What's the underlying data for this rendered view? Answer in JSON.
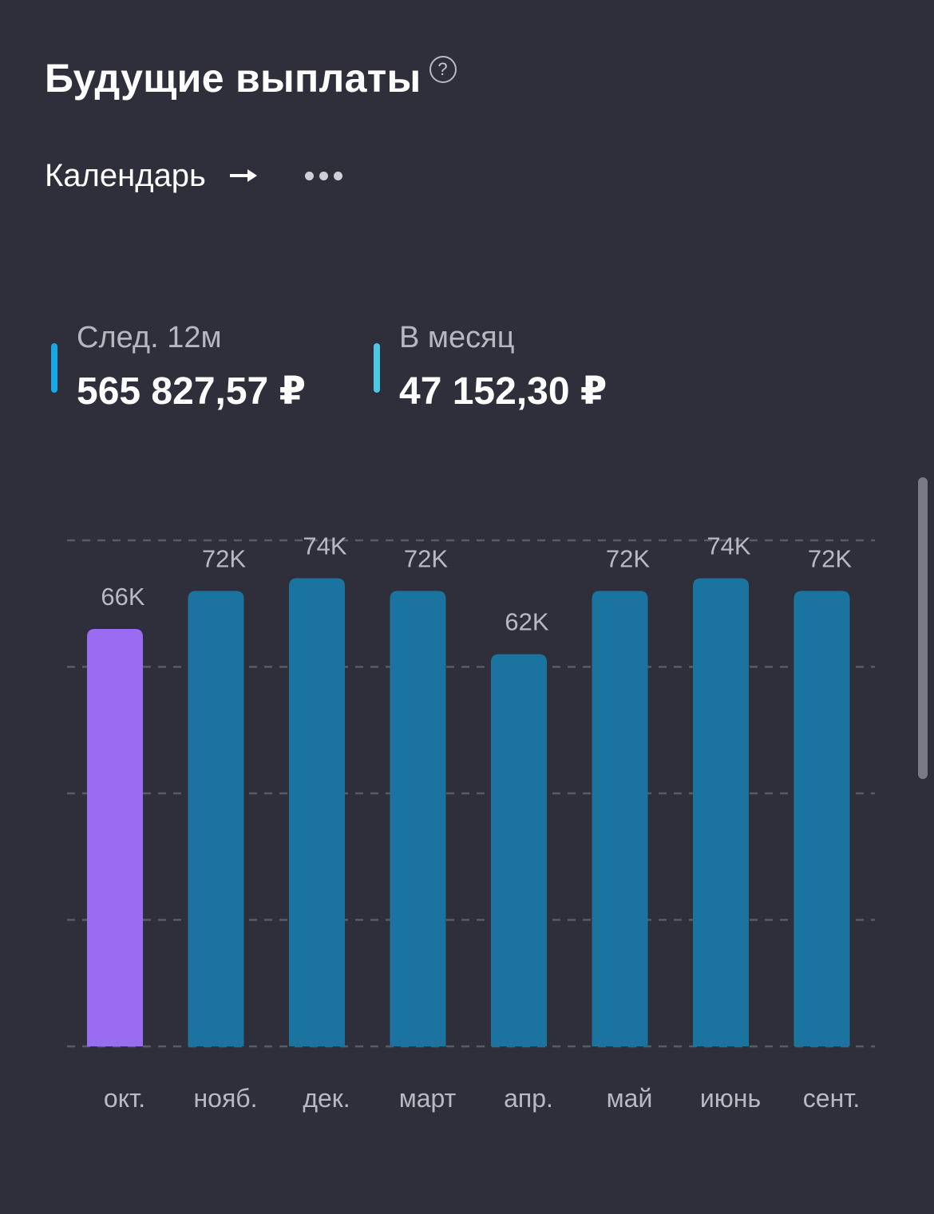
{
  "header": {
    "title": "Будущие выплаты",
    "help_glyph": "?"
  },
  "calendar": {
    "label": "Календарь",
    "arrow_icon": "arrow-right-icon",
    "more_icon": "more-dots-icon"
  },
  "stats": [
    {
      "label": "След. 12м",
      "value": "565 827,57 ₽",
      "color": "#1aa7e6"
    },
    {
      "label": "В месяц",
      "value": "47 152,30 ₽",
      "color": "#4fc6e0"
    }
  ],
  "colors": {
    "background": "#2f2f3b",
    "bar_current": "#9a6cf2",
    "bar_future": "#1a749f",
    "value_label": "#b9b9c4",
    "gridline": "#5b5b66"
  },
  "chart_data": {
    "type": "bar",
    "categories": [
      "окт.",
      "нояб.",
      "дек.",
      "март",
      "апр.",
      "май",
      "июнь",
      "сент."
    ],
    "values": [
      66,
      72,
      74,
      72,
      62,
      72,
      74,
      72
    ],
    "value_labels": [
      "66K",
      "72K",
      "74K",
      "72K",
      "62K",
      "72K",
      "74K",
      "72K"
    ],
    "highlight_index": 0,
    "ylim": [
      0,
      80
    ],
    "grid": true,
    "grid_style": "dashed",
    "title": "",
    "xlabel": "",
    "ylabel": ""
  }
}
